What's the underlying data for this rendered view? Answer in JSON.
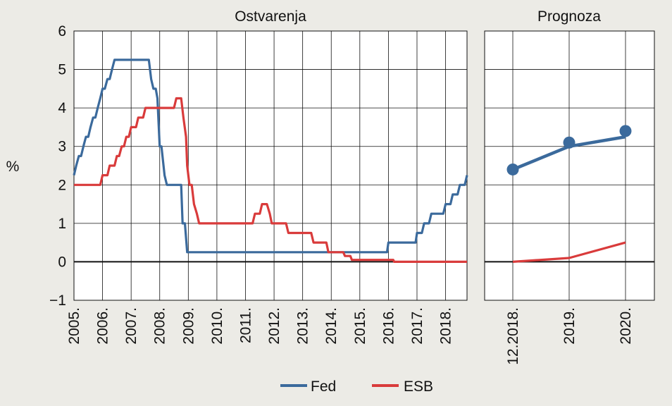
{
  "chart_data": [
    {
      "type": "line",
      "title": "Ostvarenja",
      "ylabel": "%",
      "ylim": [
        -1,
        6
      ],
      "yticks": [
        "6",
        "5",
        "4",
        "3",
        "2",
        "1",
        "0",
        "−1"
      ],
      "xlim": [
        2005,
        2018.75
      ],
      "xticks": [
        "2005.",
        "2006.",
        "2007.",
        "2008.",
        "2009.",
        "2010.",
        "2011.",
        "2012.",
        "2013.",
        "2014.",
        "2015.",
        "2016.",
        "2017.",
        "2018."
      ],
      "grid": true,
      "series": [
        {
          "name": "Fed",
          "color": "#3b6a9c",
          "points": [
            [
              2005.0,
              2.25
            ],
            [
              2005.08,
              2.5
            ],
            [
              2005.17,
              2.75
            ],
            [
              2005.25,
              2.75
            ],
            [
              2005.33,
              3.0
            ],
            [
              2005.42,
              3.25
            ],
            [
              2005.5,
              3.25
            ],
            [
              2005.58,
              3.5
            ],
            [
              2005.67,
              3.75
            ],
            [
              2005.75,
              3.75
            ],
            [
              2005.83,
              4.0
            ],
            [
              2005.92,
              4.25
            ],
            [
              2006.0,
              4.5
            ],
            [
              2006.08,
              4.5
            ],
            [
              2006.17,
              4.75
            ],
            [
              2006.25,
              4.75
            ],
            [
              2006.33,
              5.0
            ],
            [
              2006.42,
              5.25
            ],
            [
              2007.62,
              5.25
            ],
            [
              2007.7,
              4.75
            ],
            [
              2007.78,
              4.5
            ],
            [
              2007.86,
              4.5
            ],
            [
              2007.92,
              4.25
            ],
            [
              2008.0,
              3.0
            ],
            [
              2008.06,
              3.0
            ],
            [
              2008.17,
              2.25
            ],
            [
              2008.25,
              2.0
            ],
            [
              2008.75,
              2.0
            ],
            [
              2008.8,
              1.0
            ],
            [
              2008.88,
              1.0
            ],
            [
              2008.96,
              0.25
            ],
            [
              2015.95,
              0.25
            ],
            [
              2016.0,
              0.5
            ],
            [
              2016.95,
              0.5
            ],
            [
              2017.0,
              0.75
            ],
            [
              2017.17,
              0.75
            ],
            [
              2017.25,
              1.0
            ],
            [
              2017.42,
              1.0
            ],
            [
              2017.5,
              1.25
            ],
            [
              2017.92,
              1.25
            ],
            [
              2018.0,
              1.5
            ],
            [
              2018.17,
              1.5
            ],
            [
              2018.25,
              1.75
            ],
            [
              2018.42,
              1.75
            ],
            [
              2018.5,
              2.0
            ],
            [
              2018.67,
              2.0
            ],
            [
              2018.75,
              2.25
            ]
          ]
        },
        {
          "name": "ESB",
          "color": "#d93b3b",
          "points": [
            [
              2005.0,
              2.0
            ],
            [
              2005.92,
              2.0
            ],
            [
              2006.0,
              2.25
            ],
            [
              2006.17,
              2.25
            ],
            [
              2006.25,
              2.5
            ],
            [
              2006.42,
              2.5
            ],
            [
              2006.5,
              2.75
            ],
            [
              2006.58,
              2.75
            ],
            [
              2006.67,
              3.0
            ],
            [
              2006.75,
              3.0
            ],
            [
              2006.83,
              3.25
            ],
            [
              2006.92,
              3.25
            ],
            [
              2007.0,
              3.5
            ],
            [
              2007.17,
              3.5
            ],
            [
              2007.25,
              3.75
            ],
            [
              2007.42,
              3.75
            ],
            [
              2007.5,
              4.0
            ],
            [
              2008.5,
              4.0
            ],
            [
              2008.58,
              4.25
            ],
            [
              2008.75,
              4.25
            ],
            [
              2008.83,
              3.75
            ],
            [
              2008.92,
              3.25
            ],
            [
              2008.96,
              2.5
            ],
            [
              2009.04,
              2.0
            ],
            [
              2009.12,
              2.0
            ],
            [
              2009.2,
              1.5
            ],
            [
              2009.3,
              1.25
            ],
            [
              2009.38,
              1.0
            ],
            [
              2011.25,
              1.0
            ],
            [
              2011.33,
              1.25
            ],
            [
              2011.5,
              1.25
            ],
            [
              2011.58,
              1.5
            ],
            [
              2011.75,
              1.5
            ],
            [
              2011.85,
              1.25
            ],
            [
              2011.92,
              1.0
            ],
            [
              2012.42,
              1.0
            ],
            [
              2012.5,
              0.75
            ],
            [
              2013.3,
              0.75
            ],
            [
              2013.38,
              0.5
            ],
            [
              2013.83,
              0.5
            ],
            [
              2013.9,
              0.25
            ],
            [
              2014.42,
              0.25
            ],
            [
              2014.48,
              0.15
            ],
            [
              2014.67,
              0.15
            ],
            [
              2014.72,
              0.05
            ],
            [
              2016.17,
              0.05
            ],
            [
              2016.2,
              0.0
            ],
            [
              2018.75,
              0.0
            ]
          ]
        }
      ]
    },
    {
      "type": "line",
      "title": "Prognoza",
      "ylim": [
        -1,
        6
      ],
      "categories": [
        "12.2018.",
        "2019.",
        "2020."
      ],
      "grid": true,
      "series": [
        {
          "name": "Fed",
          "color": "#3b6a9c",
          "values": [
            2.4,
            3.0,
            3.25
          ],
          "markers": [
            2.4,
            3.1,
            3.4
          ]
        },
        {
          "name": "ESB",
          "color": "#d93b3b",
          "values": [
            0.0,
            0.1,
            0.5
          ]
        }
      ]
    }
  ],
  "legend": [
    {
      "label": "Fed",
      "color": "#3b6a9c"
    },
    {
      "label": "ESB",
      "color": "#d93b3b"
    }
  ]
}
